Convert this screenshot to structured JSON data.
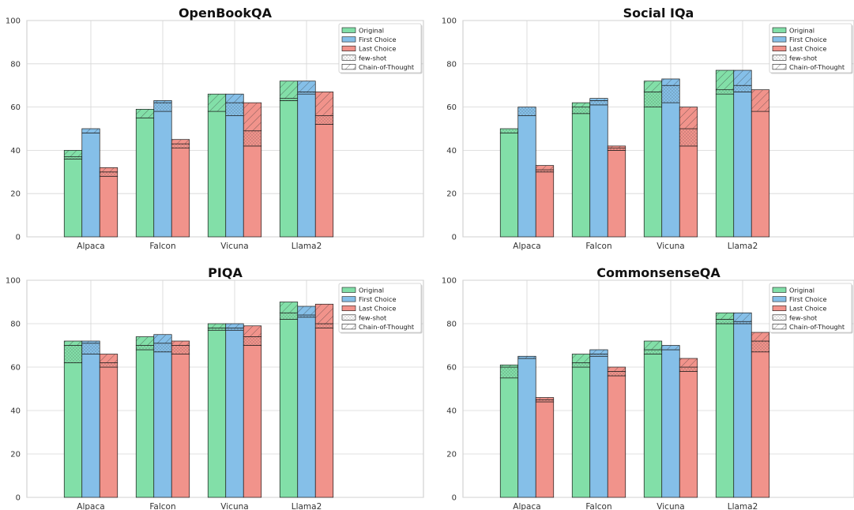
{
  "colors": {
    "original": "#82dfa8",
    "first_choice": "#85bfe8",
    "last_choice": "#f1938b",
    "original_dark": "#3fc472",
    "first_choice_dark": "#3a92d6",
    "last_choice_dark": "#e0574b",
    "grid": "#d6d6d6",
    "axes": "#c8c8c8"
  },
  "legend": {
    "items": [
      {
        "label": "Original",
        "kind": "color",
        "color_key": "original"
      },
      {
        "label": "First Choice",
        "kind": "color",
        "color_key": "first_choice"
      },
      {
        "label": "Last Choice",
        "kind": "color",
        "color_key": "last_choice"
      },
      {
        "label": "few-shot",
        "kind": "pattern",
        "pattern": "dots"
      },
      {
        "label": "Chain-of-Thought",
        "kind": "pattern",
        "pattern": "hatch"
      }
    ]
  },
  "chart_data": [
    {
      "type": "bar",
      "title": "OpenBookQA",
      "categories": [
        "Alpaca",
        "Falcon",
        "Vicuna",
        "Llama2"
      ],
      "ylim": [
        0,
        100
      ],
      "yticks": [
        0,
        20,
        40,
        60,
        80,
        100
      ],
      "grid": true,
      "legend_position": "top-right",
      "series": [
        {
          "name": "Original",
          "base": [
            36,
            55,
            58,
            63
          ],
          "few_shot": [
            37,
            55,
            58,
            64
          ],
          "chain_of_thought": [
            40,
            59,
            66,
            72
          ]
        },
        {
          "name": "First Choice",
          "base": [
            48,
            58,
            56,
            66
          ],
          "few_shot": [
            48,
            62,
            62,
            67
          ],
          "chain_of_thought": [
            50,
            63,
            66,
            72
          ]
        },
        {
          "name": "Last Choice",
          "base": [
            28,
            41,
            42,
            52
          ],
          "few_shot": [
            30,
            43,
            49,
            56
          ],
          "chain_of_thought": [
            32,
            45,
            62,
            67
          ]
        }
      ],
      "highlight": [
        [],
        [],
        [],
        []
      ]
    },
    {
      "type": "bar",
      "title": "Social IQa",
      "categories": [
        "Alpaca",
        "Falcon",
        "Vicuna",
        "Llama2"
      ],
      "ylim": [
        0,
        100
      ],
      "yticks": [
        0,
        20,
        40,
        60,
        80,
        100
      ],
      "grid": true,
      "legend_position": "top-right",
      "series": [
        {
          "name": "Original",
          "base": [
            48,
            57,
            60,
            66
          ],
          "few_shot": [
            50,
            60,
            67,
            68
          ],
          "chain_of_thought": [
            50,
            62,
            72,
            77
          ]
        },
        {
          "name": "First Choice",
          "base": [
            56,
            61,
            62,
            67
          ],
          "few_shot": [
            60,
            63,
            70,
            70
          ],
          "chain_of_thought": [
            60,
            64,
            73,
            77
          ]
        },
        {
          "name": "Last Choice",
          "base": [
            30,
            40,
            42,
            58
          ],
          "few_shot": [
            31,
            41,
            50,
            58
          ],
          "chain_of_thought": [
            33,
            42,
            60,
            68
          ]
        }
      ]
    },
    {
      "type": "bar",
      "title": "PIQA",
      "categories": [
        "Alpaca",
        "Falcon",
        "Vicuna",
        "Llama2"
      ],
      "ylim": [
        0,
        100
      ],
      "yticks": [
        0,
        20,
        40,
        60,
        80,
        100
      ],
      "grid": true,
      "legend_position": "top-right",
      "series": [
        {
          "name": "Original",
          "base": [
            62,
            68,
            77,
            82
          ],
          "few_shot": [
            70,
            70,
            78,
            85
          ],
          "chain_of_thought": [
            72,
            74,
            80,
            90
          ]
        },
        {
          "name": "First Choice",
          "base": [
            66,
            67,
            77,
            83
          ],
          "few_shot": [
            71,
            71,
            78,
            84
          ],
          "chain_of_thought": [
            72,
            75,
            80,
            88
          ]
        },
        {
          "name": "Last Choice",
          "base": [
            60,
            66,
            70,
            78
          ],
          "few_shot": [
            62,
            70,
            74,
            80
          ],
          "chain_of_thought": [
            66,
            72,
            79,
            89
          ]
        }
      ]
    },
    {
      "type": "bar",
      "title": "CommonsenseQA",
      "categories": [
        "Alpaca",
        "Falcon",
        "Vicuna",
        "Llama2"
      ],
      "ylim": [
        0,
        100
      ],
      "yticks": [
        0,
        20,
        40,
        60,
        80,
        100
      ],
      "grid": true,
      "legend_position": "top-right",
      "series": [
        {
          "name": "Original",
          "base": [
            55,
            60,
            66,
            80
          ],
          "few_shot": [
            60,
            62,
            68,
            82
          ],
          "chain_of_thought": [
            61,
            66,
            72,
            85
          ]
        },
        {
          "name": "First Choice",
          "base": [
            64,
            65,
            68,
            80
          ],
          "few_shot": [
            64,
            66,
            68,
            81
          ],
          "chain_of_thought": [
            65,
            68,
            70,
            85
          ]
        },
        {
          "name": "Last Choice",
          "base": [
            44,
            56,
            58,
            67
          ],
          "few_shot": [
            45,
            58,
            60,
            72
          ],
          "chain_of_thought": [
            46,
            60,
            64,
            76
          ]
        }
      ]
    }
  ]
}
